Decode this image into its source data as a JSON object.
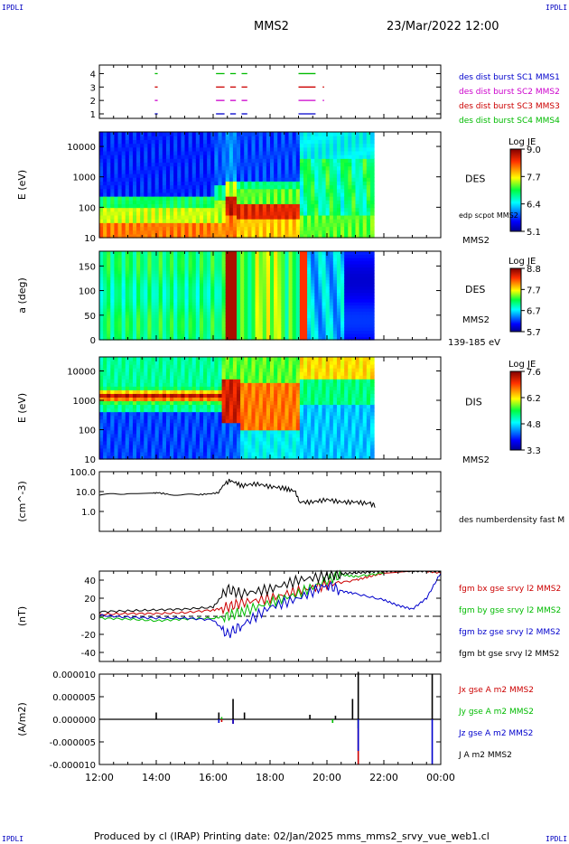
{
  "page": {
    "corner_tl": "IPDLI",
    "corner_tr": "IPDLI",
    "corner_bl": "IPDLI",
    "corner_br": "IPDLI",
    "spacecraft": "MMS2",
    "datetime": "23/Mar/2022 12:00",
    "footer": "Produced by cl (IRAP)   Printing date: 02/Jan/2025   mms_mms2_srvy_vue_web1.cl"
  },
  "colors": {
    "sc1": "#0000cc",
    "sc2": "#cc00cc",
    "sc3": "#cc0000",
    "sc4": "#00bb00",
    "grey": "#dddddd"
  },
  "time_axis": {
    "ticks": [
      "12:00",
      "14:00",
      "16:00",
      "18:00",
      "20:00",
      "22:00",
      "00:00"
    ],
    "tick_hours": [
      12,
      14,
      16,
      18,
      20,
      22,
      24
    ],
    "data_end_hour": 21.7
  },
  "chart_data": [
    {
      "id": "burst",
      "type": "scatter",
      "yticks": [
        "4",
        "3",
        "2",
        "1"
      ],
      "legend": [
        "des dist burst SC1 MMS1",
        "des dist burst SC2 MMS2",
        "des dist burst SC3 MMS3",
        "des dist burst SC4 MMS4"
      ],
      "series": [
        {
          "name": "des dist burst SC1 MMS1",
          "level": 1,
          "color": "#0000cc",
          "intervals": [
            [
              13.95,
              14.05
            ],
            [
              16.1,
              16.4
            ],
            [
              16.6,
              16.8
            ],
            [
              17.0,
              17.2
            ],
            [
              19.0,
              19.6
            ]
          ]
        },
        {
          "name": "des dist burst SC2 MMS2",
          "level": 2,
          "color": "#cc00cc",
          "intervals": [
            [
              13.95,
              14.05
            ],
            [
              16.1,
              16.4
            ],
            [
              16.6,
              16.8
            ],
            [
              17.0,
              17.2
            ],
            [
              19.0,
              19.6
            ],
            [
              19.85,
              19.9
            ]
          ]
        },
        {
          "name": "des dist burst SC3 MMS3",
          "level": 3,
          "color": "#cc0000",
          "intervals": [
            [
              13.95,
              14.05
            ],
            [
              16.1,
              16.4
            ],
            [
              16.6,
              16.8
            ],
            [
              17.0,
              17.2
            ],
            [
              19.0,
              19.6
            ],
            [
              19.85,
              19.9
            ]
          ]
        },
        {
          "name": "des dist burst SC4 MMS4",
          "level": 4,
          "color": "#00bb00",
          "intervals": [
            [
              13.95,
              14.05
            ],
            [
              16.1,
              16.4
            ],
            [
              16.6,
              16.8
            ],
            [
              17.0,
              17.2
            ],
            [
              19.0,
              19.6
            ]
          ]
        }
      ]
    },
    {
      "id": "des_energy",
      "type": "heatmap",
      "ylabel": "E (eV)",
      "yticks": [
        "10000",
        "1000",
        "100",
        "10"
      ],
      "ylim": [
        10,
        30000
      ],
      "yscale": "log",
      "label": "DES",
      "label2": "edp scpot MMS2",
      "label3": "MMS2",
      "colorbar": {
        "title": "Log JE",
        "ticks": [
          "9.0",
          "7.7",
          "6.4",
          "5.1"
        ],
        "range": [
          5.1,
          9.0
        ]
      }
    },
    {
      "id": "des_pitch",
      "type": "heatmap",
      "ylabel": "a (deg)",
      "yticks": [
        "150",
        "100",
        "50",
        "0"
      ],
      "ylim": [
        0,
        180
      ],
      "label": "DES",
      "label2": "MMS2",
      "label3": "139-185 eV",
      "colorbar": {
        "title": "Log JE",
        "ticks": [
          "8.8",
          "7.7",
          "6.7",
          "5.7"
        ],
        "range": [
          5.7,
          8.8
        ]
      }
    },
    {
      "id": "dis_energy",
      "type": "heatmap",
      "ylabel": "E (eV)",
      "yticks": [
        "10000",
        "1000",
        "100",
        "10"
      ],
      "ylim": [
        10,
        30000
      ],
      "yscale": "log",
      "label": "DIS",
      "label2": "MMS2",
      "colorbar": {
        "title": "Log JE",
        "ticks": [
          "7.6",
          "6.2",
          "4.8",
          "3.3"
        ],
        "range": [
          3.3,
          7.6
        ]
      }
    },
    {
      "id": "density",
      "type": "line",
      "ylabel": "(cm^-3)",
      "yticks": [
        "100.0",
        "10.0",
        "1.0"
      ],
      "ylim": [
        0.1,
        100
      ],
      "yscale": "log",
      "legend": [
        "des numberdensity fast M"
      ],
      "x": [
        12.0,
        13.0,
        13.9,
        14.0,
        14.5,
        15.5,
        16.0,
        16.2,
        16.5,
        16.6,
        17.0,
        17.5,
        18.0,
        18.5,
        18.9,
        19.0,
        19.5,
        20.0,
        20.5,
        21.0,
        21.5,
        21.7
      ],
      "y": [
        7,
        8,
        8,
        9,
        7,
        7,
        8,
        9,
        30,
        35,
        20,
        25,
        18,
        15,
        10,
        3,
        3,
        4,
        3,
        3,
        2.5,
        2
      ]
    },
    {
      "id": "magnetic",
      "type": "line",
      "ylabel": "(nT)",
      "yticks": [
        "40",
        "20",
        "0",
        "-20",
        "-40"
      ],
      "ylim": [
        -50,
        50
      ],
      "legend": [
        "fgm bx gse srvy l2 MMS2",
        "fgm by gse srvy l2 MMS2",
        "fgm bz gse srvy l2 MMS2",
        "fgm bt gse srvy l2 MMS2"
      ],
      "series": [
        {
          "name": "fgm bx gse srvy l2 MMS2",
          "color": "#cc0000",
          "x": [
            12.0,
            13.0,
            14.0,
            15.0,
            16.0,
            16.5,
            17.0,
            18.0,
            19.0,
            20.0,
            21.0,
            21.5,
            22.0,
            23.5,
            24.0
          ],
          "y": [
            2,
            3,
            3,
            4,
            7,
            10,
            15,
            20,
            28,
            35,
            40,
            44,
            48,
            50,
            48
          ]
        },
        {
          "name": "fgm by gse srvy l2 MMS2",
          "color": "#00bb00",
          "x": [
            12.0,
            13.0,
            14.0,
            15.0,
            16.0,
            16.5,
            17.0,
            18.0,
            19.0,
            20.0,
            20.5,
            21.0,
            22.0
          ],
          "y": [
            -2,
            -3,
            -5,
            -3,
            -2,
            0,
            5,
            15,
            25,
            40,
            46,
            44,
            48
          ]
        },
        {
          "name": "fgm bz gse srvy l2 MMS2",
          "color": "#0000cc",
          "x": [
            12.0,
            13.0,
            14.0,
            15.0,
            16.0,
            16.5,
            17.0,
            18.0,
            19.0,
            20.0,
            20.5,
            21.0,
            22.0,
            22.5,
            23.0,
            23.5,
            24.0
          ],
          "y": [
            1,
            -1,
            -2,
            -2,
            -4,
            -20,
            -10,
            10,
            20,
            35,
            28,
            25,
            18,
            12,
            8,
            20,
            48
          ]
        },
        {
          "name": "fgm bt gse srvy l2 MMS2",
          "color": "#000000",
          "x": [
            12.0,
            13.0,
            14.0,
            15.0,
            16.0,
            16.5,
            17.0,
            18.0,
            19.0,
            20.0,
            20.5,
            21.0,
            21.5,
            22.0,
            22.5,
            23.0,
            23.5,
            24.0
          ],
          "y": [
            5,
            6,
            7,
            8,
            10,
            30,
            25,
            30,
            40,
            45,
            47,
            48,
            49,
            50,
            50,
            50,
            50,
            50
          ]
        }
      ]
    },
    {
      "id": "current",
      "type": "line",
      "ylabel": "(A/m2)",
      "yticks": [
        "0.000010",
        "0.000005",
        "0.000000",
        "-0.000005",
        "-0.000010"
      ],
      "ylim": [
        -1e-05,
        1e-05
      ],
      "legend": [
        "Jx gse A m2 MMS2",
        "Jy gse A m2 MMS2",
        "Jz gse A m2 MMS2",
        "J A m2 MMS2"
      ],
      "series": [
        {
          "name": "Jx gse A m2 MMS2",
          "color": "#cc0000",
          "spikes": [
            [
              16.3,
              -6e-07
            ],
            [
              16.7,
              -1e-06
            ],
            [
              21.1,
              -1e-05
            ]
          ]
        },
        {
          "name": "Jy gse A m2 MMS2",
          "color": "#00bb00",
          "spikes": [
            [
              16.3,
              5e-07
            ],
            [
              20.2,
              -8e-07
            ],
            [
              21.1,
              -2e-06
            ]
          ]
        },
        {
          "name": "Jz gse A m2 MMS2",
          "color": "#0000cc",
          "spikes": [
            [
              16.2,
              -8e-07
            ],
            [
              16.7,
              -1e-06
            ],
            [
              21.1,
              -7e-06
            ],
            [
              23.7,
              -1e-05
            ]
          ]
        },
        {
          "name": "J A m2 MMS2",
          "color": "#000000",
          "spikes": [
            [
              14.0,
              1.5e-06
            ],
            [
              16.2,
              1.5e-06
            ],
            [
              16.7,
              4.5e-06
            ],
            [
              17.1,
              1.5e-06
            ],
            [
              19.4,
              1e-06
            ],
            [
              20.3,
              8e-07
            ],
            [
              20.9,
              4.5e-06
            ],
            [
              21.1,
              1.05e-05
            ],
            [
              23.7,
              1e-05
            ]
          ]
        }
      ]
    }
  ]
}
